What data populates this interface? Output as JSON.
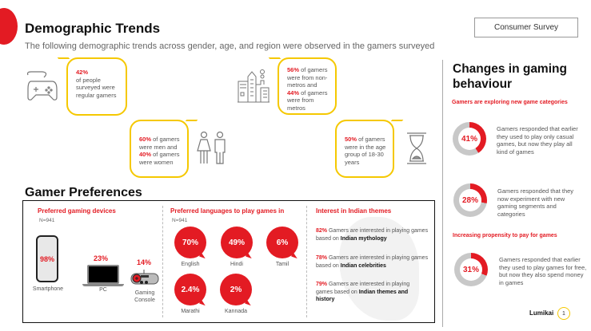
{
  "header": {
    "title": "Demographic Trends",
    "subtitle": "The following demographic trends across gender, age, and region were observed in the gamers surveyed",
    "badge": "Consumer Survey"
  },
  "demographics": {
    "gamers": {
      "pct": "42%",
      "text": "of people surveyed were regular gamers"
    },
    "gender": {
      "pct1": "60%",
      "text1": " of gamers were men and ",
      "pct2": "40%",
      "text2": " of gamers were women"
    },
    "region": {
      "pct1": "56%",
      "text1": " of gamers were from non-metros and ",
      "pct2": "44%",
      "text2": " of gamers were from metros"
    },
    "age": {
      "pct": "50%",
      "text": " of gamers were in the age group of 18-30 years"
    }
  },
  "preferences": {
    "title": "Gamer Preferences",
    "devices": {
      "heading": "Preferred gaming devices",
      "n": "N=941",
      "items": [
        {
          "label": "Smartphone",
          "value": "98%"
        },
        {
          "label": "PC",
          "value": "23%"
        },
        {
          "label": "Gaming Console",
          "value": "14%"
        }
      ]
    },
    "languages": {
      "heading": "Preferred languages to play games in",
      "n": "N=941",
      "items": [
        {
          "label": "English",
          "value": "70%"
        },
        {
          "label": "Hindi",
          "value": "49%"
        },
        {
          "label": "Tamil",
          "value": "6%"
        },
        {
          "label": "Marathi",
          "value": "2.4%"
        },
        {
          "label": "Kannada",
          "value": "2%"
        }
      ]
    },
    "themes": {
      "heading": "Interest in Indian themes",
      "items": [
        {
          "pct": "82%",
          "text": " Gamers are interested in playing games based on ",
          "bold": "Indian mythology"
        },
        {
          "pct": "78%",
          "text": " Gamers are interested in playing games based on ",
          "bold": "Indian celebrities"
        },
        {
          "pct": "79%",
          "text": " Gamers are interested in playing games based on ",
          "bold": "Indian themes and history"
        }
      ]
    }
  },
  "changes": {
    "title": "Changes in gaming behaviour",
    "sub1": "Gamers are exploring new game categories",
    "sub2": "Increasing propensity to pay for games",
    "items": [
      {
        "value": "41%",
        "percent": 41,
        "text": "Gamers responded that earlier they used to play only casual games, but now they play all kind of games"
      },
      {
        "value": "28%",
        "percent": 28,
        "text": "Gamers responded that they now experiment with new gaming segments and categories"
      },
      {
        "value": "31%",
        "percent": 31,
        "text": "Gamers responded that earlier they used to play games for free, but now they also spend money in games"
      }
    ]
  },
  "footer": {
    "logo": "Lumikai",
    "page": "1"
  },
  "colors": {
    "accent": "#e31b23",
    "bubble": "#f5c800"
  }
}
